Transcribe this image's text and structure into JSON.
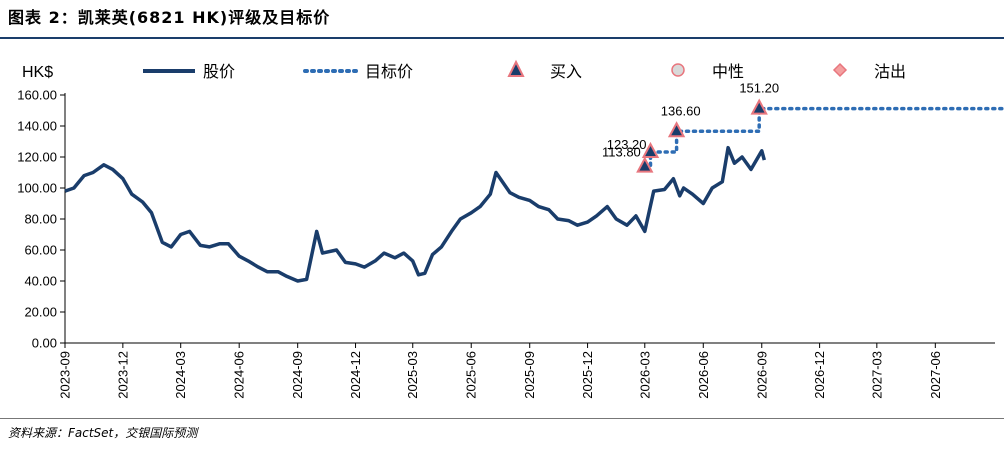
{
  "figure": {
    "title": "图表 2：凯莱英(6821 HK)评级及目标价",
    "source": "资料来源：FactSet，交银国际预测"
  },
  "chart_data": {
    "type": "line",
    "unit_label": "HK$",
    "ylim": [
      0,
      160
    ],
    "y_ticks": [
      "0.00",
      "20.00",
      "40.00",
      "60.00",
      "80.00",
      "100.00",
      "120.00",
      "140.00",
      "160.00"
    ],
    "x_ticks": [
      "2023-09",
      "2023-12",
      "2024-03",
      "2024-06",
      "2024-09",
      "2024-12",
      "2025-03",
      "2025-06",
      "2025-09",
      "2025-12",
      "2026-03",
      "2026-06",
      "2026-09",
      "2026-12",
      "2027-03",
      "2027-06"
    ],
    "legend": [
      {
        "name": "股价",
        "kind": "line"
      },
      {
        "name": "目标价",
        "kind": "dotted"
      },
      {
        "name": "买入",
        "kind": "triangle"
      },
      {
        "name": "中性",
        "kind": "circle"
      },
      {
        "name": "沽出",
        "kind": "diamond"
      }
    ],
    "colors": {
      "price": "#1a3d6b",
      "target": "#2e6db4",
      "marker_fill": "#1a3d6b",
      "marker_edge": "#e8767e",
      "neutral": "#d9d9d9",
      "sell": "#f4a0a0"
    },
    "price_series": {
      "name": "股价",
      "points": [
        [
          "2023-09-01",
          98
        ],
        [
          "2023-09-15",
          100
        ],
        [
          "2023-10-01",
          108
        ],
        [
          "2023-10-15",
          110
        ],
        [
          "2023-11-01",
          115
        ],
        [
          "2023-11-15",
          112
        ],
        [
          "2023-12-01",
          106
        ],
        [
          "2023-12-15",
          96
        ],
        [
          "2024-01-01",
          91
        ],
        [
          "2024-01-15",
          84
        ],
        [
          "2024-02-01",
          65
        ],
        [
          "2024-02-15",
          62
        ],
        [
          "2024-03-01",
          70
        ],
        [
          "2024-03-15",
          72
        ],
        [
          "2024-04-01",
          63
        ],
        [
          "2024-04-15",
          62
        ],
        [
          "2024-05-01",
          64
        ],
        [
          "2024-05-15",
          64
        ],
        [
          "2024-06-01",
          56
        ],
        [
          "2024-06-15",
          53
        ],
        [
          "2024-07-01",
          49
        ],
        [
          "2024-07-15",
          46
        ],
        [
          "2024-08-01",
          46
        ],
        [
          "2024-08-15",
          43
        ],
        [
          "2024-09-01",
          40
        ],
        [
          "2024-09-15",
          41
        ],
        [
          "2024-10-01",
          72
        ],
        [
          "2024-10-10",
          58
        ],
        [
          "2024-11-01",
          60
        ],
        [
          "2024-11-15",
          52
        ],
        [
          "2024-12-01",
          51
        ],
        [
          "2024-12-15",
          49
        ],
        [
          "2025-01-01",
          53
        ],
        [
          "2025-01-15",
          58
        ],
        [
          "2025-02-01",
          55
        ],
        [
          "2025-02-15",
          58
        ],
        [
          "2025-03-01",
          53
        ],
        [
          "2025-03-10",
          44
        ],
        [
          "2025-03-20",
          45
        ],
        [
          "2025-04-01",
          57
        ],
        [
          "2025-04-15",
          62
        ],
        [
          "2025-05-01",
          72
        ],
        [
          "2025-05-15",
          80
        ],
        [
          "2025-06-01",
          84
        ],
        [
          "2025-06-15",
          88
        ],
        [
          "2025-07-01",
          96
        ],
        [
          "2025-07-10",
          110
        ],
        [
          "2025-07-20",
          104
        ],
        [
          "2025-08-01",
          97
        ],
        [
          "2025-08-15",
          94
        ],
        [
          "2025-09-01",
          92
        ],
        [
          "2025-09-15",
          88
        ],
        [
          "2025-10-01",
          86
        ],
        [
          "2025-10-15",
          80
        ],
        [
          "2025-11-01",
          79
        ],
        [
          "2025-11-15",
          76
        ],
        [
          "2025-12-01",
          78
        ],
        [
          "2025-12-15",
          82
        ],
        [
          "2026-01-01",
          88
        ],
        [
          "2026-01-15",
          80
        ],
        [
          "2026-02-01",
          76
        ],
        [
          "2026-02-15",
          82
        ],
        [
          "2026-03-01",
          72
        ],
        [
          "2026-03-15",
          98
        ],
        [
          "2026-04-01",
          99
        ],
        [
          "2026-04-15",
          106
        ],
        [
          "2026-04-25",
          95
        ],
        [
          "2026-05-01",
          100
        ],
        [
          "2026-05-15",
          96
        ],
        [
          "2026-06-01",
          90
        ],
        [
          "2026-06-15",
          100
        ],
        [
          "2026-07-01",
          104
        ],
        [
          "2026-07-10",
          126
        ],
        [
          "2026-07-20",
          116
        ],
        [
          "2026-08-01",
          120
        ],
        [
          "2026-08-15",
          112
        ],
        [
          "2026-09-01",
          124
        ],
        [
          "2026-09-05",
          118
        ]
      ]
    },
    "target_series": {
      "name": "目标价",
      "points": [
        [
          "2026-03-01",
          113.8
        ],
        [
          "2026-03-10",
          113.8
        ],
        [
          "2026-03-10",
          123.2
        ],
        [
          "2026-04-20",
          123.2
        ],
        [
          "2026-04-20",
          136.6
        ],
        [
          "2026-08-28",
          136.6
        ],
        [
          "2026-08-28",
          151.2
        ],
        [
          "2027-09-30",
          151.2
        ]
      ]
    },
    "ratings": [
      {
        "date": "2026-03-01",
        "value": 113.8,
        "rating": "买入",
        "label": "113.80"
      },
      {
        "date": "2026-03-10",
        "value": 123.2,
        "rating": "买入",
        "label": "123.20"
      },
      {
        "date": "2026-04-20",
        "value": 136.6,
        "rating": "买入",
        "label": "136.60"
      },
      {
        "date": "2026-08-28",
        "value": 151.2,
        "rating": "买入",
        "label": "151.20"
      }
    ]
  }
}
